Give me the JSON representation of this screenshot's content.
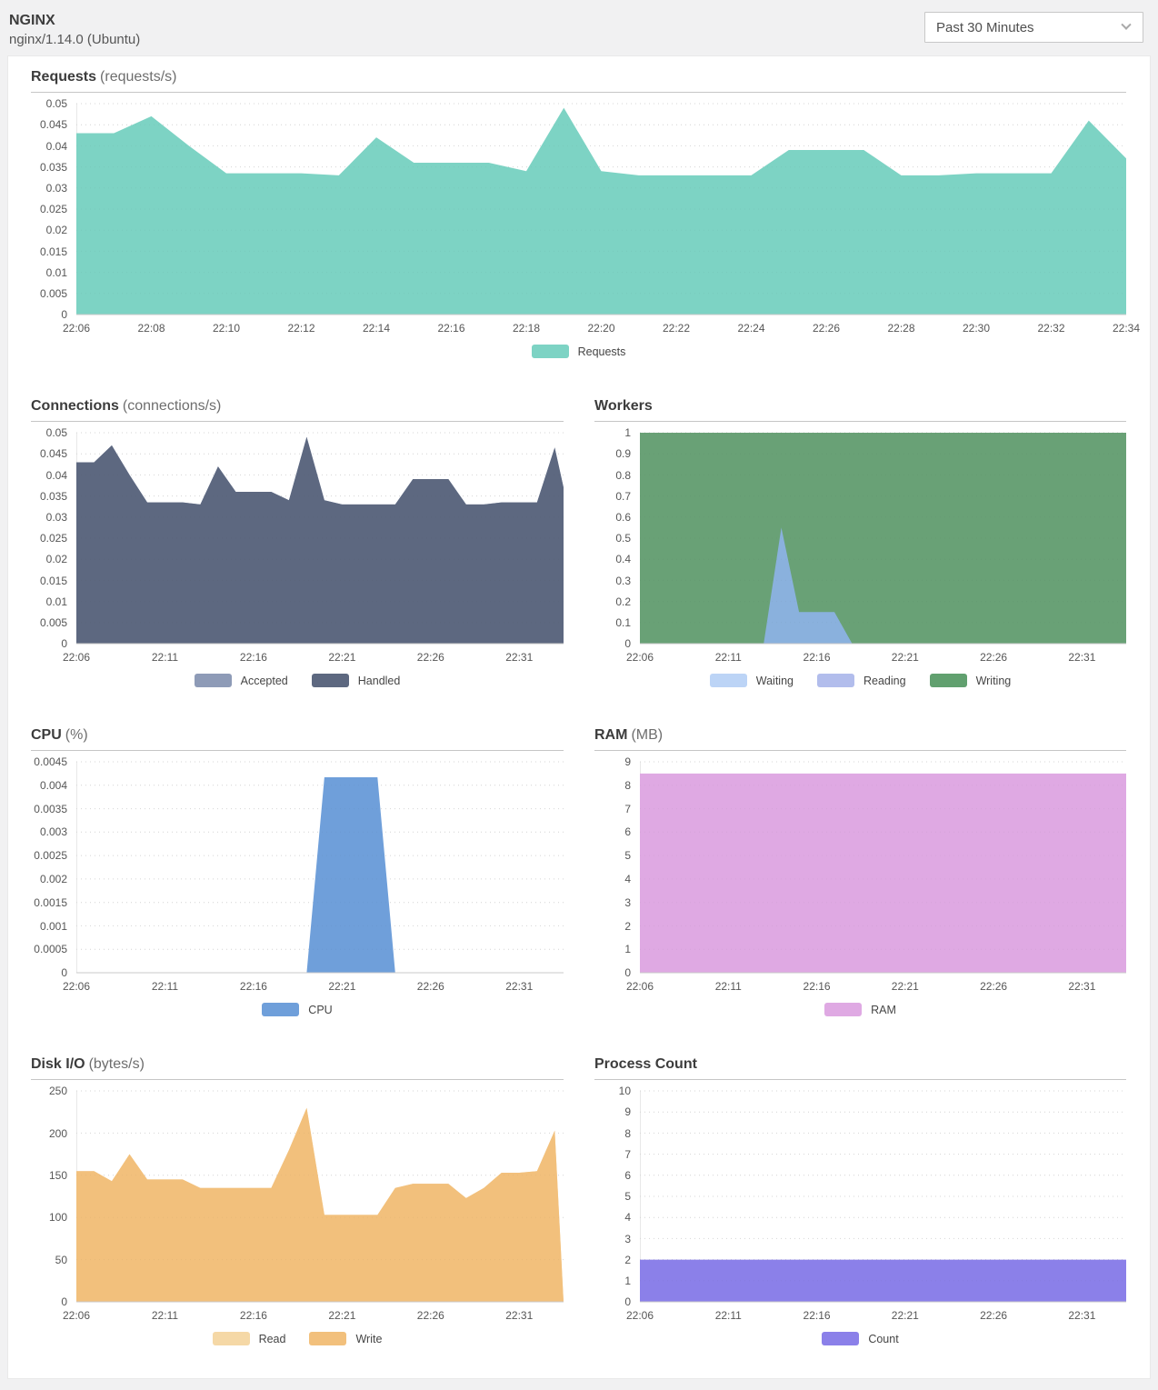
{
  "header": {
    "title": "NGINX",
    "subtitle": "nginx/1.14.0 (Ubuntu)",
    "time_range": {
      "value": "Past 30 Minutes"
    }
  },
  "chart_data": [
    {
      "type": "area",
      "title": "Requests",
      "unit": "(requests/s)",
      "ylim": [
        0,
        0.05
      ],
      "grid": true,
      "legend_position": "bottom-center",
      "y_ticks": [
        {
          "v": 0.05,
          "label": "0.05"
        },
        {
          "v": 0.045,
          "label": "0.045"
        },
        {
          "v": 0.04,
          "label": "0.04"
        },
        {
          "v": 0.035,
          "label": "0.035"
        },
        {
          "v": 0.03,
          "label": "0.03"
        },
        {
          "v": 0.025,
          "label": "0.025"
        },
        {
          "v": 0.02,
          "label": "0.02"
        },
        {
          "v": 0.015,
          "label": "0.015"
        },
        {
          "v": 0.01,
          "label": "0.01"
        },
        {
          "v": 0.005,
          "label": "0.005"
        },
        {
          "v": 0,
          "label": "0"
        }
      ],
      "x_domain": [
        0,
        28
      ],
      "x_ticks": [
        {
          "m": 0,
          "label": "22:06"
        },
        {
          "m": 2,
          "label": "22:08"
        },
        {
          "m": 4,
          "label": "22:10"
        },
        {
          "m": 6,
          "label": "22:12"
        },
        {
          "m": 8,
          "label": "22:14"
        },
        {
          "m": 10,
          "label": "22:16"
        },
        {
          "m": 12,
          "label": "22:18"
        },
        {
          "m": 14,
          "label": "22:20"
        },
        {
          "m": 16,
          "label": "22:22"
        },
        {
          "m": 18,
          "label": "22:24"
        },
        {
          "m": 20,
          "label": "22:26"
        },
        {
          "m": 22,
          "label": "22:28"
        },
        {
          "m": 24,
          "label": "22:30"
        },
        {
          "m": 26,
          "label": "22:32"
        },
        {
          "m": 28,
          "label": "22:34"
        }
      ],
      "series": [
        {
          "name": "Requests",
          "color": "#7dd3c4",
          "x": [
            0,
            1,
            2,
            3,
            4,
            5,
            6,
            7,
            8,
            9,
            10,
            11,
            12,
            13,
            14,
            15,
            16,
            17,
            18,
            19,
            20,
            21,
            22,
            23,
            24,
            25,
            26,
            27,
            28
          ],
          "values": [
            0.043,
            0.043,
            0.047,
            0.04,
            0.0335,
            0.0335,
            0.0335,
            0.033,
            0.042,
            0.036,
            0.036,
            0.036,
            0.034,
            0.049,
            0.034,
            0.033,
            0.033,
            0.033,
            0.033,
            0.039,
            0.039,
            0.039,
            0.033,
            0.033,
            0.0335,
            0.0335,
            0.0335,
            0.046,
            0.037
          ]
        }
      ],
      "legend": [
        {
          "label": "Requests",
          "color": "#7dd3c4"
        }
      ]
    },
    {
      "type": "area",
      "title": "Connections",
      "unit": "(connections/s)",
      "ylim": [
        0,
        0.05
      ],
      "grid": true,
      "legend_position": "bottom-center",
      "y_ticks": [
        {
          "v": 0.05,
          "label": "0.05"
        },
        {
          "v": 0.045,
          "label": "0.045"
        },
        {
          "v": 0.04,
          "label": "0.04"
        },
        {
          "v": 0.035,
          "label": "0.035"
        },
        {
          "v": 0.03,
          "label": "0.03"
        },
        {
          "v": 0.025,
          "label": "0.025"
        },
        {
          "v": 0.02,
          "label": "0.02"
        },
        {
          "v": 0.015,
          "label": "0.015"
        },
        {
          "v": 0.01,
          "label": "0.01"
        },
        {
          "v": 0.005,
          "label": "0.005"
        },
        {
          "v": 0,
          "label": "0"
        }
      ],
      "x_domain": [
        0,
        27.5
      ],
      "x_ticks": [
        {
          "m": 0,
          "label": "22:06"
        },
        {
          "m": 5,
          "label": "22:11"
        },
        {
          "m": 10,
          "label": "22:16"
        },
        {
          "m": 15,
          "label": "22:21"
        },
        {
          "m": 20,
          "label": "22:26"
        },
        {
          "m": 25,
          "label": "22:31"
        }
      ],
      "series": [
        {
          "name": "Accepted",
          "color": "#8e9bb7",
          "x": [
            0,
            1,
            2,
            3,
            4,
            5,
            6,
            7,
            8,
            9,
            10,
            11,
            12,
            13,
            14,
            15,
            16,
            17,
            18,
            19,
            20,
            21,
            22,
            23,
            24,
            25,
            26,
            27,
            27.5
          ],
          "values": [
            0.043,
            0.043,
            0.047,
            0.04,
            0.0335,
            0.0335,
            0.0335,
            0.033,
            0.042,
            0.036,
            0.036,
            0.036,
            0.034,
            0.049,
            0.034,
            0.033,
            0.033,
            0.033,
            0.033,
            0.039,
            0.039,
            0.039,
            0.033,
            0.033,
            0.0335,
            0.0335,
            0.0335,
            0.0465,
            0.037
          ]
        },
        {
          "name": "Handled",
          "color": "#5d6880",
          "x": [
            0,
            1,
            2,
            3,
            4,
            5,
            6,
            7,
            8,
            9,
            10,
            11,
            12,
            13,
            14,
            15,
            16,
            17,
            18,
            19,
            20,
            21,
            22,
            23,
            24,
            25,
            26,
            27,
            27.5
          ],
          "values": [
            0.043,
            0.043,
            0.047,
            0.04,
            0.0335,
            0.0335,
            0.0335,
            0.033,
            0.042,
            0.036,
            0.036,
            0.036,
            0.034,
            0.049,
            0.034,
            0.033,
            0.033,
            0.033,
            0.033,
            0.039,
            0.039,
            0.039,
            0.033,
            0.033,
            0.0335,
            0.0335,
            0.0335,
            0.0465,
            0.037
          ]
        }
      ],
      "legend": [
        {
          "label": "Accepted",
          "color": "#8e9bb7"
        },
        {
          "label": "Handled",
          "color": "#5d6880"
        }
      ]
    },
    {
      "type": "area",
      "title": "Workers",
      "unit": "",
      "ylim": [
        0,
        1
      ],
      "grid": true,
      "legend_position": "bottom-center",
      "y_ticks": [
        {
          "v": 1,
          "label": "1"
        },
        {
          "v": 0.9,
          "label": "0.9"
        },
        {
          "v": 0.8,
          "label": "0.8"
        },
        {
          "v": 0.7,
          "label": "0.7"
        },
        {
          "v": 0.6,
          "label": "0.6"
        },
        {
          "v": 0.5,
          "label": "0.5"
        },
        {
          "v": 0.4,
          "label": "0.4"
        },
        {
          "v": 0.3,
          "label": "0.3"
        },
        {
          "v": 0.2,
          "label": "0.2"
        },
        {
          "v": 0.1,
          "label": "0.1"
        },
        {
          "v": 0,
          "label": "0"
        }
      ],
      "x_domain": [
        0,
        27.5
      ],
      "x_ticks": [
        {
          "m": 0,
          "label": "22:06"
        },
        {
          "m": 5,
          "label": "22:11"
        },
        {
          "m": 10,
          "label": "22:16"
        },
        {
          "m": 15,
          "label": "22:21"
        },
        {
          "m": 20,
          "label": "22:26"
        },
        {
          "m": 25,
          "label": "22:31"
        }
      ],
      "series": [
        {
          "name": "Writing",
          "color": "#69a176",
          "x": [
            0,
            27.5
          ],
          "values": [
            1,
            1
          ]
        },
        {
          "name": "Reading",
          "color": "#b2bdec",
          "x": [
            0,
            27.5
          ],
          "values": [
            0,
            0
          ]
        },
        {
          "name": "Waiting",
          "color": "#8ab1dd",
          "x": [
            0,
            7,
            8,
            9,
            11,
            12,
            27.5
          ],
          "values": [
            0,
            0,
            0.55,
            0.15,
            0.15,
            0,
            0
          ]
        }
      ],
      "legend": [
        {
          "label": "Waiting",
          "color": "#bcd4f6"
        },
        {
          "label": "Reading",
          "color": "#b2bdec"
        },
        {
          "label": "Writing",
          "color": "#61a06f"
        }
      ]
    },
    {
      "type": "area",
      "title": "CPU",
      "unit": "(%)",
      "ylim": [
        0,
        0.0045
      ],
      "grid": true,
      "legend_position": "bottom-center",
      "y_ticks": [
        {
          "v": 0.0045,
          "label": "0.0045"
        },
        {
          "v": 0.004,
          "label": "0.004"
        },
        {
          "v": 0.0035,
          "label": "0.0035"
        },
        {
          "v": 0.003,
          "label": "0.003"
        },
        {
          "v": 0.0025,
          "label": "0.0025"
        },
        {
          "v": 0.002,
          "label": "0.002"
        },
        {
          "v": 0.0015,
          "label": "0.0015"
        },
        {
          "v": 0.001,
          "label": "0.001"
        },
        {
          "v": 0.0005,
          "label": "0.0005"
        },
        {
          "v": 0,
          "label": "0"
        }
      ],
      "x_domain": [
        0,
        27.5
      ],
      "x_ticks": [
        {
          "m": 0,
          "label": "22:06"
        },
        {
          "m": 5,
          "label": "22:11"
        },
        {
          "m": 10,
          "label": "22:16"
        },
        {
          "m": 15,
          "label": "22:21"
        },
        {
          "m": 20,
          "label": "22:26"
        },
        {
          "m": 25,
          "label": "22:31"
        }
      ],
      "series": [
        {
          "name": "CPU",
          "color": "#6f9fda",
          "x": [
            0,
            13,
            14,
            17,
            18,
            27.5
          ],
          "values": [
            0,
            0,
            0.00417,
            0.00417,
            0,
            0
          ]
        }
      ],
      "legend": [
        {
          "label": "CPU",
          "color": "#6f9fda"
        }
      ]
    },
    {
      "type": "area",
      "title": "RAM",
      "unit": "(MB)",
      "ylim": [
        0,
        9
      ],
      "grid": true,
      "legend_position": "bottom-center",
      "y_ticks": [
        {
          "v": 9,
          "label": "9"
        },
        {
          "v": 8,
          "label": "8"
        },
        {
          "v": 7,
          "label": "7"
        },
        {
          "v": 6,
          "label": "6"
        },
        {
          "v": 5,
          "label": "5"
        },
        {
          "v": 4,
          "label": "4"
        },
        {
          "v": 3,
          "label": "3"
        },
        {
          "v": 2,
          "label": "2"
        },
        {
          "v": 1,
          "label": "1"
        },
        {
          "v": 0,
          "label": "0"
        }
      ],
      "x_domain": [
        0,
        27.5
      ],
      "x_ticks": [
        {
          "m": 0,
          "label": "22:06"
        },
        {
          "m": 5,
          "label": "22:11"
        },
        {
          "m": 10,
          "label": "22:16"
        },
        {
          "m": 15,
          "label": "22:21"
        },
        {
          "m": 20,
          "label": "22:26"
        },
        {
          "m": 25,
          "label": "22:31"
        }
      ],
      "series": [
        {
          "name": "RAM",
          "color": "#dfa9e3",
          "x": [
            0,
            27.5
          ],
          "values": [
            8.5,
            8.5
          ]
        }
      ],
      "legend": [
        {
          "label": "RAM",
          "color": "#dfa9e3"
        }
      ]
    },
    {
      "type": "area",
      "title": "Disk I/O",
      "unit": "(bytes/s)",
      "ylim": [
        0,
        250
      ],
      "grid": true,
      "legend_position": "bottom-center",
      "y_ticks": [
        {
          "v": 250,
          "label": "250"
        },
        {
          "v": 200,
          "label": "200"
        },
        {
          "v": 150,
          "label": "150"
        },
        {
          "v": 100,
          "label": "100"
        },
        {
          "v": 50,
          "label": "50"
        },
        {
          "v": 0,
          "label": "0"
        }
      ],
      "x_domain": [
        0,
        27.5
      ],
      "x_ticks": [
        {
          "m": 0,
          "label": "22:06"
        },
        {
          "m": 5,
          "label": "22:11"
        },
        {
          "m": 10,
          "label": "22:16"
        },
        {
          "m": 15,
          "label": "22:21"
        },
        {
          "m": 20,
          "label": "22:26"
        },
        {
          "m": 25,
          "label": "22:31"
        }
      ],
      "series": [
        {
          "name": "Read",
          "color": "#f5d8a6",
          "x": [
            0,
            1,
            2,
            3,
            4,
            5,
            6,
            7,
            8,
            9,
            10,
            11,
            12,
            13,
            14,
            15,
            16,
            17,
            18,
            19,
            20,
            21,
            22,
            23,
            24,
            25,
            26,
            27,
            27.5
          ],
          "values": [
            155,
            155,
            143,
            175,
            145,
            145,
            145,
            135,
            135,
            135,
            135,
            135,
            180,
            230,
            103,
            103,
            103,
            103,
            135,
            140,
            140,
            140,
            123,
            135,
            153,
            153,
            155,
            203,
            0
          ]
        },
        {
          "name": "Write",
          "color": "#f2c07c",
          "x": [
            0,
            1,
            2,
            3,
            4,
            5,
            6,
            7,
            8,
            9,
            10,
            11,
            12,
            13,
            14,
            15,
            16,
            17,
            18,
            19,
            20,
            21,
            22,
            23,
            24,
            25,
            26,
            27,
            27.5
          ],
          "values": [
            155,
            155,
            143,
            175,
            145,
            145,
            145,
            135,
            135,
            135,
            135,
            135,
            180,
            230,
            103,
            103,
            103,
            103,
            135,
            140,
            140,
            140,
            123,
            135,
            153,
            153,
            155,
            203,
            0
          ]
        }
      ],
      "legend": [
        {
          "label": "Read",
          "color": "#f5d8a6"
        },
        {
          "label": "Write",
          "color": "#f2c07c"
        }
      ]
    },
    {
      "type": "area",
      "title": "Process Count",
      "unit": "",
      "ylim": [
        0,
        10
      ],
      "grid": true,
      "legend_position": "bottom-center",
      "y_ticks": [
        {
          "v": 10,
          "label": "10"
        },
        {
          "v": 9,
          "label": "9"
        },
        {
          "v": 8,
          "label": "8"
        },
        {
          "v": 7,
          "label": "7"
        },
        {
          "v": 6,
          "label": "6"
        },
        {
          "v": 5,
          "label": "5"
        },
        {
          "v": 4,
          "label": "4"
        },
        {
          "v": 3,
          "label": "3"
        },
        {
          "v": 2,
          "label": "2"
        },
        {
          "v": 1,
          "label": "1"
        },
        {
          "v": 0,
          "label": "0"
        }
      ],
      "x_domain": [
        0,
        27.5
      ],
      "x_ticks": [
        {
          "m": 0,
          "label": "22:06"
        },
        {
          "m": 5,
          "label": "22:11"
        },
        {
          "m": 10,
          "label": "22:16"
        },
        {
          "m": 15,
          "label": "22:21"
        },
        {
          "m": 20,
          "label": "22:26"
        },
        {
          "m": 25,
          "label": "22:31"
        }
      ],
      "series": [
        {
          "name": "Count",
          "color": "#8b80e9",
          "x": [
            0,
            27.5
          ],
          "values": [
            2,
            2
          ]
        }
      ],
      "legend": [
        {
          "label": "Count",
          "color": "#8b80e9"
        }
      ]
    }
  ]
}
